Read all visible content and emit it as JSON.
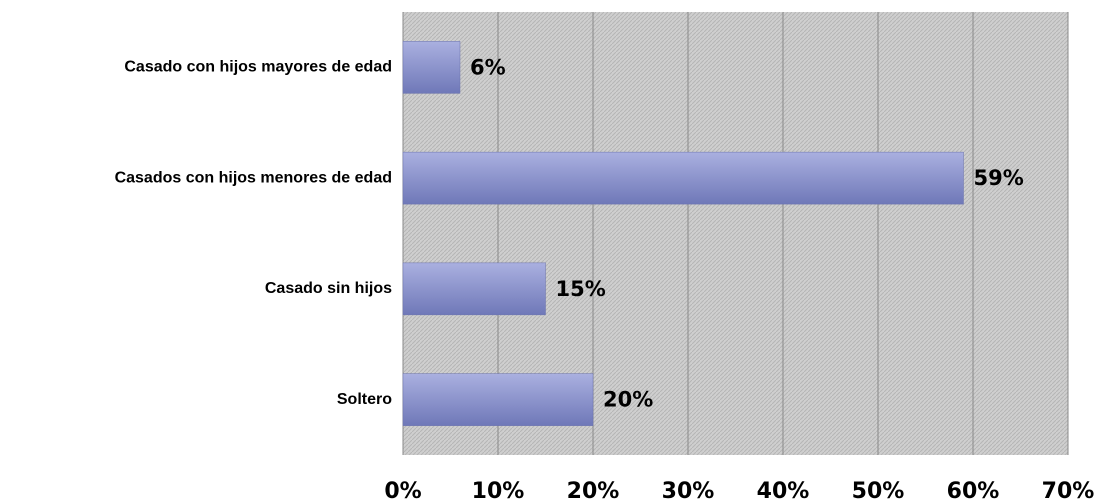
{
  "chart_data": {
    "type": "bar",
    "orientation": "horizontal",
    "categories": [
      "Casado con hijos mayores de edad",
      "Casados con hijos menores de edad",
      "Casado sin hijos",
      "Soltero"
    ],
    "values": [
      6,
      59,
      15,
      20
    ],
    "value_labels": [
      "6%",
      "59%",
      "15%",
      "20%"
    ],
    "color": "#8c95d0",
    "xlim": [
      0,
      70
    ],
    "xticks": [
      {
        "value": 0,
        "label": "0%"
      },
      {
        "value": 10,
        "label": "10%"
      },
      {
        "value": 20,
        "label": "20%"
      },
      {
        "value": 30,
        "label": "30%"
      },
      {
        "value": 40,
        "label": "40%"
      },
      {
        "value": 50,
        "label": "50%"
      },
      {
        "value": 60,
        "label": "60%"
      },
      {
        "value": 70,
        "label": "70%"
      }
    ],
    "grid": true
  }
}
